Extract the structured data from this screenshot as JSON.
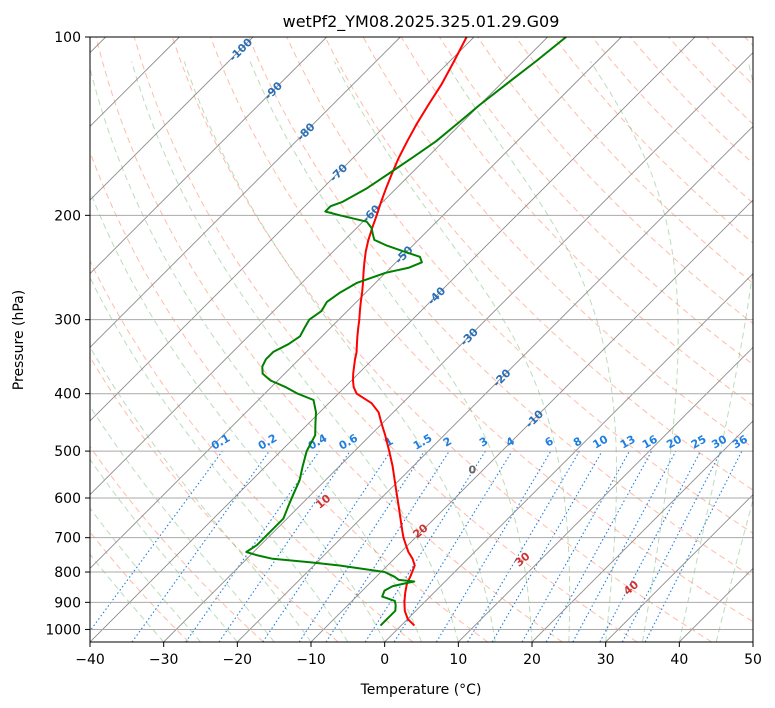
{
  "colors": {
    "temperature": "#ff0000",
    "dewpoint": "#008000",
    "isotherm": "#8c8c8c",
    "isobar": "#a9a9a9",
    "dry_adiabat": "#ff6a3d",
    "moist_adiabat": "#3c9b3c",
    "mixing_ratio": "#1f7fe0",
    "label_blue": "#2a6fb5",
    "label_red": "#cc3333",
    "label_gray": "#666666"
  },
  "chart_data": {
    "type": "line",
    "subtype": "skew-t log-p",
    "title": "wetPf2_YM08.2025.325.01.29.G09",
    "xlabel": "Temperature (°C)",
    "ylabel": "Pressure (hPa)",
    "xlim": [
      -40,
      50
    ],
    "ylim": [
      1050,
      100
    ],
    "yscale": "log",
    "grid": true,
    "x_ticks": [
      -40,
      -30,
      -20,
      -10,
      0,
      10,
      20,
      30,
      40,
      50
    ],
    "x_tick_labels": [
      "−40",
      "−30",
      "−20",
      "−10",
      "0",
      "10",
      "20",
      "30",
      "40",
      "50"
    ],
    "y_ticks": [
      1000,
      900,
      800,
      700,
      600,
      500,
      400,
      300,
      200,
      100
    ],
    "y_tick_labels": [
      "1000",
      "900",
      "800",
      "700",
      "600",
      "500",
      "400",
      "300",
      "200",
      "100"
    ],
    "series": [
      {
        "key": "temperature",
        "pressure": [
          985,
          960,
          930,
          900,
          870,
          840,
          810,
          780,
          760,
          740,
          720,
          700,
          680,
          650,
          620,
          590,
          560,
          530,
          500,
          470,
          450,
          430,
          415,
          400,
          390,
          380,
          370,
          350,
          340,
          330,
          320,
          310,
          300,
          290,
          280,
          270,
          260,
          250,
          240,
          230,
          220,
          210,
          200,
          190,
          180,
          170,
          160,
          150,
          140,
          130,
          120,
          110,
          100
        ],
        "values": [
          1.8,
          0,
          -1.5,
          -2.7,
          -3.8,
          -4.8,
          -5.5,
          -6.3,
          -7.5,
          -9.0,
          -10.3,
          -11.6,
          -12.8,
          -14.6,
          -16.5,
          -18.5,
          -20.6,
          -22.8,
          -25.3,
          -28.0,
          -30.0,
          -32.0,
          -34.2,
          -37.5,
          -38.8,
          -39.8,
          -40.7,
          -42.4,
          -43.2,
          -44.2,
          -45.2,
          -46.2,
          -47.2,
          -48.3,
          -49.4,
          -50.5,
          -51.7,
          -53.0,
          -54.3,
          -55.6,
          -56.8,
          -57.9,
          -59.0,
          -60.2,
          -61.4,
          -62.6,
          -63.8,
          -64.9,
          -66.0,
          -67.0,
          -68.0,
          -69.4,
          -71.0
        ]
      },
      {
        "key": "dewpoint",
        "pressure": [
          985,
          960,
          930,
          910,
          895,
          880,
          860,
          845,
          835,
          830,
          825,
          815,
          800,
          790,
          780,
          770,
          760,
          750,
          740,
          720,
          700,
          680,
          650,
          620,
          590,
          560,
          530,
          500,
          470,
          450,
          430,
          410,
          400,
          390,
          380,
          370,
          360,
          350,
          340,
          330,
          320,
          310,
          300,
          290,
          280,
          270,
          260,
          250,
          245,
          240,
          235,
          230,
          225,
          220,
          215,
          210,
          205,
          200,
          197,
          193,
          190,
          180,
          170,
          160,
          150,
          140,
          130,
          120,
          110,
          100
        ],
        "values": [
          -2.8,
          -2.8,
          -2.8,
          -3.5,
          -4.2,
          -6.5,
          -7.0,
          -6.5,
          -5.0,
          -4.2,
          -6.5,
          -7.5,
          -9.5,
          -13.0,
          -16.5,
          -21.0,
          -26.5,
          -29.0,
          -31.0,
          -30.5,
          -30.5,
          -30.5,
          -30.5,
          -31.5,
          -32.5,
          -33.5,
          -35.0,
          -36.5,
          -37.5,
          -39.0,
          -40.5,
          -42.5,
          -45.5,
          -48.0,
          -51.0,
          -53.0,
          -54.0,
          -54.5,
          -54.5,
          -53.5,
          -53.0,
          -53.5,
          -54.0,
          -53.5,
          -54.0,
          -53.5,
          -52.5,
          -50.0,
          -47.5,
          -46.5,
          -47.5,
          -50.5,
          -53.5,
          -56.0,
          -57.0,
          -58.0,
          -59.5,
          -64.0,
          -66.5,
          -66.5,
          -65.5,
          -64.0,
          -63.0,
          -62.0,
          -61.0,
          -60.5,
          -60.0,
          -59.2,
          -58.3,
          -57.5
        ]
      }
    ],
    "dry_adiabat_labels": [
      "10",
      "20",
      "30",
      "40"
    ],
    "moist_adiabat_labels": [
      "0"
    ],
    "mixing_ratio_labels": [
      "0.1",
      "0.2",
      "0.4",
      "0.6",
      "1",
      "1.5",
      "2",
      "3",
      "4",
      "6",
      "8",
      "10",
      "13",
      "16",
      "20",
      "25",
      "30",
      "36"
    ],
    "isotherm_labels": [
      "-100",
      "-90",
      "-80",
      "-70",
      "-60",
      "-50",
      "-40",
      "-30",
      "-20",
      "-10"
    ]
  }
}
